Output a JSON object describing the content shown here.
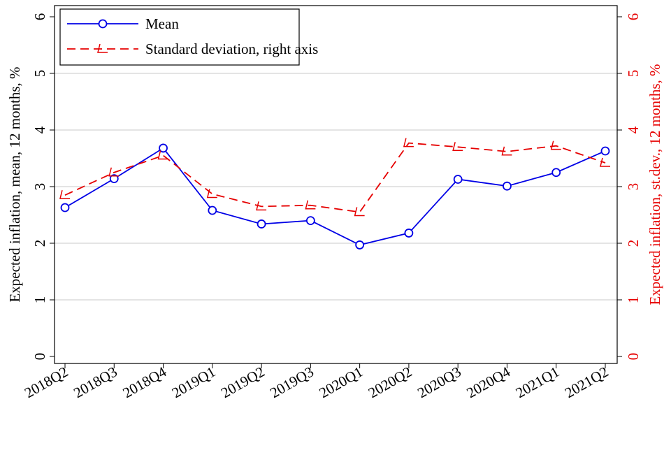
{
  "chart_data": {
    "type": "line",
    "ylabel": "Expected inflation, mean, 12 months, %",
    "y2label": "Expected inflation, st.dev., 12 months, %",
    "categories": [
      "2018Q2",
      "2018Q3",
      "2018Q4",
      "2019Q1",
      "2019Q2",
      "2019Q3",
      "2020Q1",
      "2020Q2",
      "2020Q3",
      "2020Q4",
      "2021Q1",
      "2021Q2"
    ],
    "series": [
      {
        "name": "Mean",
        "color": "#0000e6",
        "values": [
          2.63,
          3.14,
          3.68,
          2.58,
          2.34,
          2.4,
          1.97,
          2.18,
          3.13,
          3.01,
          3.25,
          3.63
        ]
      },
      {
        "name": "Standard deviation, right axis",
        "color": "#e60000",
        "axis": "y2",
        "values": [
          2.85,
          3.25,
          3.55,
          2.87,
          2.65,
          2.67,
          2.55,
          3.77,
          3.7,
          3.62,
          3.72,
          3.42
        ]
      }
    ],
    "ylim": [
      0,
      6
    ],
    "yticks": [
      0,
      1,
      2,
      3,
      4,
      5,
      6
    ],
    "y2lim": [
      0,
      6
    ],
    "y2ticks": [
      0,
      1,
      2,
      3,
      4,
      5,
      6
    ],
    "grid": true,
    "legend": "upper left"
  }
}
